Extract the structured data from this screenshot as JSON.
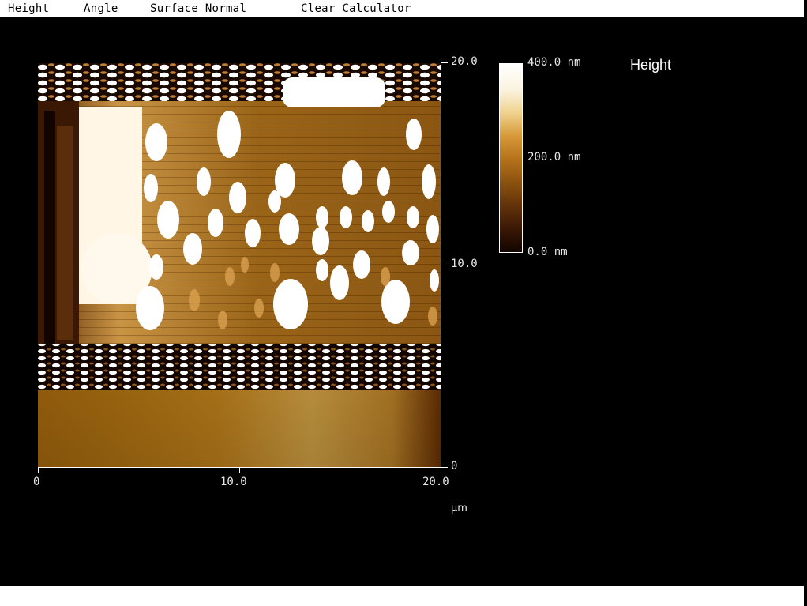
{
  "menu": {
    "items": [
      "Height",
      "Angle",
      "Surface Normal",
      "Clear Calculator"
    ]
  },
  "channel": {
    "title": "Height"
  },
  "image": {
    "scan_size_x": [
      0,
      20.0
    ],
    "scan_size_y": [
      0,
      20.0
    ],
    "x_axis": {
      "ticks": [
        "0",
        "10.0",
        "20.0"
      ],
      "unit": "µm"
    },
    "y_axis": {
      "ticks": [
        "20.0",
        "10.0",
        "0"
      ]
    }
  },
  "colorbar": {
    "max_label": "400.0 nm",
    "mid_label": "200.0 nm",
    "min_label": "0.0 nm",
    "colors": [
      "#ffffff",
      "#f0d28e",
      "#b8741c",
      "#64330a",
      "#120500"
    ]
  }
}
